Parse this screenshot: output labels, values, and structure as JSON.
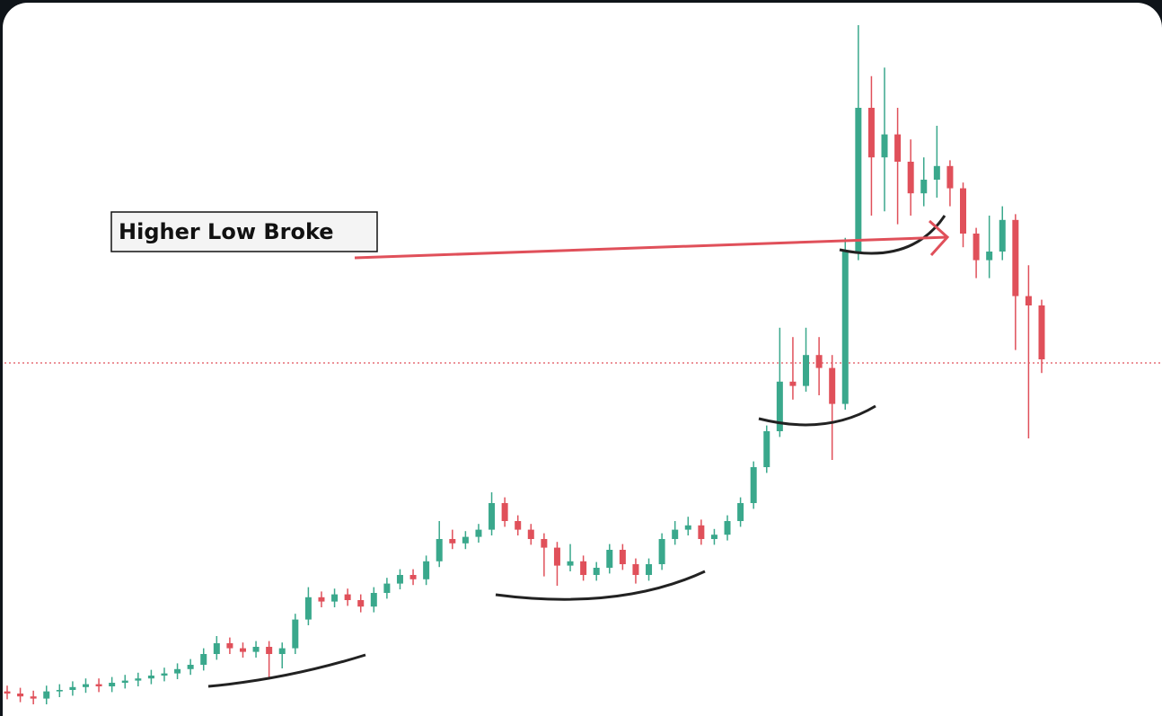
{
  "chart_data": {
    "type": "candlestick",
    "annotation": "Higher Low Broke",
    "ylim": [
      0,
      100
    ],
    "reference_line": 49.5,
    "up_color": "#3aa88c",
    "down_color": "#e0505a",
    "open": [
      3.8,
      3.5,
      3.1,
      2.8,
      3.8,
      4,
      4.4,
      4.8,
      4.5,
      5,
      5.3,
      5.6,
      6,
      6.3,
      6.9,
      7.5,
      9,
      10.5,
      9.8,
      9.3,
      10,
      9,
      9.8,
      13.8,
      16.9,
      16.3,
      17.3,
      16.5,
      15.6,
      17.5,
      18.8,
      20,
      19.4,
      21.9,
      25,
      24.4,
      25.3,
      26.3,
      30,
      27.5,
      26.3,
      25,
      23.8,
      21.3,
      21.9,
      20,
      21,
      23.5,
      21.5,
      20,
      21.5,
      25,
      26.3,
      26.9,
      25,
      25.6,
      27.5,
      30,
      35,
      40,
      46.9,
      46.3,
      50.6,
      48.8,
      43.8,
      65,
      85,
      78.1,
      81.3,
      77.5,
      73.1,
      75,
      76.9,
      73.8,
      67.5,
      63.8,
      65,
      69.4,
      58.8,
      57.5
    ],
    "high": [
      4.6,
      4.3,
      3.9,
      4.6,
      4.8,
      5.2,
      5.6,
      5.6,
      5.8,
      6.1,
      6.4,
      6.8,
      7.1,
      7.7,
      8.3,
      9.8,
      11.5,
      11.3,
      10.6,
      10.8,
      10.8,
      10.6,
      14.6,
      18.3,
      17.7,
      18.1,
      18.1,
      17.3,
      18.3,
      19.6,
      20.8,
      20.8,
      22.7,
      27.5,
      26.3,
      26.1,
      27.1,
      31.5,
      30.8,
      28.3,
      27.1,
      25.8,
      24.6,
      24.3,
      22.7,
      21.8,
      24.3,
      24.3,
      22.3,
      22.3,
      25.8,
      27.5,
      28.1,
      27.7,
      26.4,
      28.3,
      30.8,
      35.8,
      40.8,
      54.4,
      53.1,
      54.4,
      53.1,
      50.6,
      66.9,
      96.5,
      89.4,
      90.6,
      85,
      80.6,
      78.1,
      82.5,
      77.7,
      74.6,
      68.3,
      70,
      71.3,
      70.2,
      63.1,
      58.3
    ],
    "low": [
      2.7,
      2.3,
      2,
      2,
      3,
      3.2,
      3.6,
      3.7,
      3.7,
      4.2,
      4.5,
      4.8,
      5.2,
      5.5,
      6.1,
      6.7,
      8.2,
      9,
      8.5,
      8.5,
      5.5,
      7,
      9,
      13,
      15.5,
      15.5,
      15.7,
      14.8,
      14.8,
      16.7,
      18,
      18.6,
      18.6,
      21.1,
      23.6,
      23.6,
      24.5,
      25.5,
      26.7,
      25.5,
      24.2,
      19.8,
      18.5,
      20.5,
      19.2,
      19.2,
      20.2,
      20.7,
      18.8,
      19.2,
      20.7,
      24.2,
      25.5,
      24.2,
      24.2,
      24.8,
      26.7,
      29.2,
      34.2,
      39.2,
      44.4,
      45.5,
      45,
      36,
      43,
      63.8,
      70,
      70.6,
      68.8,
      70,
      71.3,
      72.5,
      71.3,
      65.6,
      61.3,
      61.3,
      63.8,
      51.3,
      39,
      48.1
    ],
    "close": [
      3.5,
      3.1,
      2.8,
      3.8,
      4,
      4.4,
      4.8,
      4.5,
      5,
      5.3,
      5.6,
      6,
      6.3,
      6.9,
      7.5,
      9,
      10.5,
      9.8,
      9.3,
      10,
      9,
      9.8,
      13.8,
      16.9,
      16.3,
      17.3,
      16.5,
      15.6,
      17.5,
      18.8,
      20,
      19.4,
      21.9,
      25,
      24.4,
      25.3,
      26.3,
      30,
      27.5,
      26.3,
      25,
      23.8,
      21.3,
      21.9,
      20,
      21,
      23.5,
      21.5,
      20,
      21.5,
      25,
      26.3,
      26.9,
      25,
      25.6,
      27.5,
      30,
      35,
      40,
      46.9,
      46.3,
      50.6,
      48.8,
      43.8,
      65,
      85,
      78.1,
      81.3,
      77.5,
      73.1,
      75,
      76.9,
      73.8,
      67.5,
      63.8,
      65,
      69.4,
      58.8,
      57.5,
      50
    ]
  }
}
